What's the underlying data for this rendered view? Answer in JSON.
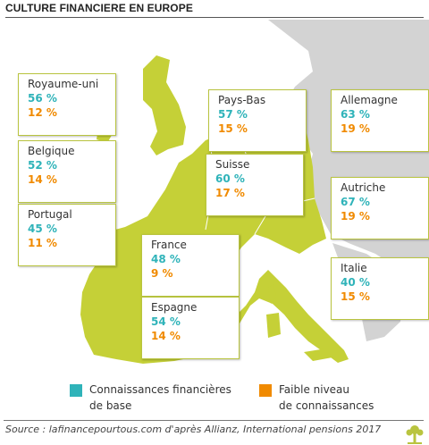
{
  "title": "CULTURE FINANCIERE EN EUROPE",
  "colors": {
    "basic": "#2fb3b9",
    "low": "#f08a00",
    "land": "#c5d037",
    "other_land": "#d3d3d3"
  },
  "countries": [
    {
      "name": "Royaume-uni",
      "basic": "56 %",
      "low": "12 %"
    },
    {
      "name": "Belgique",
      "basic": "52 %",
      "low": "14 %"
    },
    {
      "name": "Portugal",
      "basic": "45 %",
      "low": "11 %"
    },
    {
      "name": "Pays-Bas",
      "basic": "57 %",
      "low": "15 %"
    },
    {
      "name": "Suisse",
      "basic": "60 %",
      "low": "17 %"
    },
    {
      "name": "France",
      "basic": "48 %",
      "low": "9 %"
    },
    {
      "name": "Espagne",
      "basic": "54 %",
      "low": "14 %"
    },
    {
      "name": "Allemagne",
      "basic": "63 %",
      "low": "19 %"
    },
    {
      "name": "Autriche",
      "basic": "67 %",
      "low": "19 %"
    },
    {
      "name": "Italie",
      "basic": "40 %",
      "low": "15 %"
    }
  ],
  "legend": {
    "basic_line1": "Connaissances financières",
    "basic_line2": "de base",
    "low_line1": "Faible niveau",
    "low_line2": "de connaissances"
  },
  "source": "Source : lafinancepourtous.com d'après Allianz, International pensions 2017",
  "logo": "tree-logo-icon"
}
